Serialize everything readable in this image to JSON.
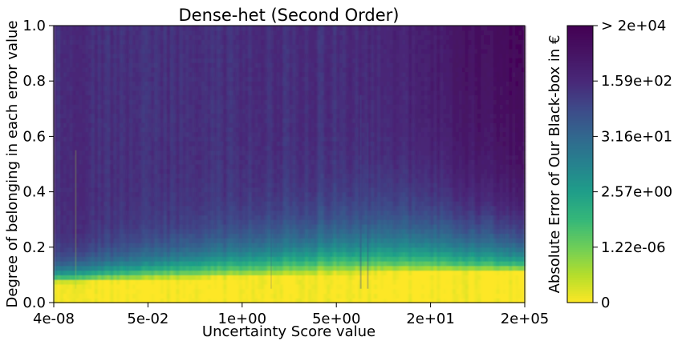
{
  "chart_data": {
    "type": "heatmap",
    "title": "Dense-het (Second Order)",
    "xlabel": "Uncertainty Score value",
    "ylabel": "Degree of belonging in each error value",
    "x_ticks": [
      "4e-08",
      "5e-02",
      "1e+00",
      "5e+00",
      "2e+01",
      "2e+05"
    ],
    "y_ticks": [
      0.0,
      0.2,
      0.4,
      0.6,
      0.8,
      1.0
    ],
    "ylim": [
      0,
      1
    ],
    "colormap": "viridis_r",
    "colorbar": {
      "label": "Absolute Error of Our Black-box in €",
      "ticks": [
        "0",
        "1.22e-06",
        "2.57e+00",
        "3.16e+01",
        "1.59e+02",
        "> 2e+04"
      ]
    },
    "grid": false,
    "colors": {
      "low": "#fde725",
      "high": "#440154"
    }
  }
}
